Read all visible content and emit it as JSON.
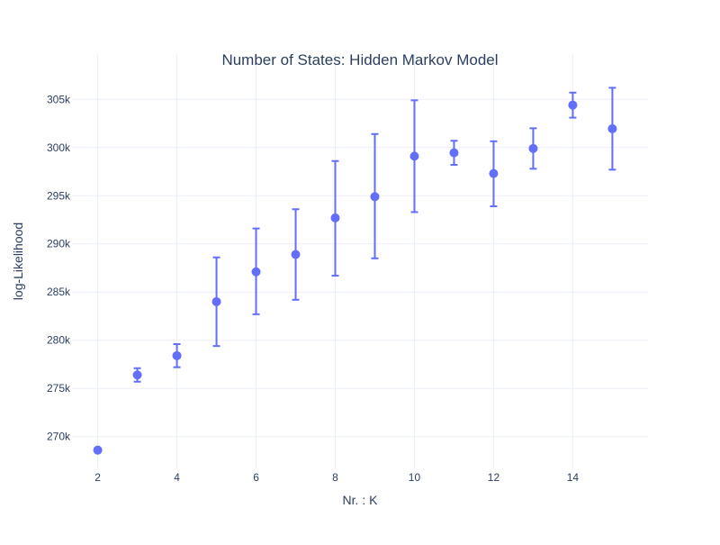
{
  "chart_data": {
    "type": "scatter",
    "title": "Number of States: Hidden Markov Model",
    "xlabel": "Nr. : K",
    "ylabel": "log-Likelihood",
    "xlim": [
      1.35,
      15.9
    ],
    "ylim": [
      266700,
      309700
    ],
    "x_ticks": [
      2,
      4,
      6,
      8,
      10,
      12,
      14
    ],
    "y_ticks": [
      270000,
      275000,
      280000,
      285000,
      290000,
      295000,
      300000,
      305000
    ],
    "y_tick_labels": [
      "270k",
      "275k",
      "280k",
      "285k",
      "290k",
      "295k",
      "300k",
      "305k"
    ],
    "grid": true,
    "legend": "none",
    "colors": {
      "marker": "#636efa",
      "grid": "#ebf0f8",
      "text": "#2a3f5f"
    },
    "series": [
      {
        "x": [
          2,
          3,
          4,
          5,
          6,
          7,
          8,
          9,
          10,
          11,
          12,
          13,
          14,
          15
        ],
        "y": [
          268600,
          276400,
          278400,
          284000,
          287100,
          288900,
          292700,
          294900,
          299100,
          299450,
          297300,
          299900,
          304400,
          301950
        ],
        "y_upper": [
          268600,
          277100,
          279600,
          288600,
          291600,
          293600,
          298600,
          301400,
          304900,
          300700,
          300650,
          302000,
          305700,
          306200
        ],
        "y_lower": [
          268600,
          275700,
          277200,
          279400,
          282700,
          284200,
          286700,
          288500,
          293300,
          298200,
          293900,
          297800,
          303100,
          297700
        ]
      }
    ]
  }
}
